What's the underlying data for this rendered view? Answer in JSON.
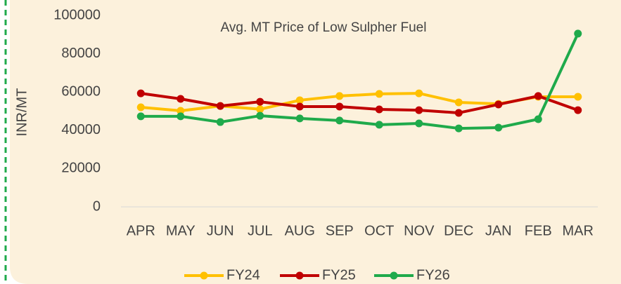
{
  "chart_data": {
    "type": "line",
    "title": "Avg. MT Price of Low Sulpher Fuel",
    "y_label": "INR/MT",
    "categories": [
      "APR",
      "MAY",
      "JUN",
      "JUL",
      "AUG",
      "SEP",
      "OCT",
      "NOV",
      "DEC",
      "JAN",
      "FEB",
      "MAR"
    ],
    "series": [
      {
        "name": "FY24",
        "color": "#ffc000",
        "values": [
          52000,
          50200,
          52700,
          51000,
          55700,
          57900,
          59000,
          59300,
          54600,
          53800,
          57500,
          57500
        ]
      },
      {
        "name": "FY25",
        "color": "#c00000",
        "values": [
          59300,
          56400,
          52700,
          54900,
          52400,
          52400,
          50900,
          50500,
          49100,
          53500,
          57900,
          50500
        ]
      },
      {
        "name": "FY26",
        "color": "#1faa4b",
        "values": [
          47300,
          47300,
          44300,
          47600,
          46200,
          45100,
          42900,
          43600,
          41000,
          41400,
          45800,
          90500
        ]
      }
    ],
    "ylim": [
      0,
      100000
    ],
    "yticks": [
      0,
      20000,
      40000,
      60000,
      80000,
      100000
    ],
    "grid": false,
    "legend": "bottom"
  }
}
